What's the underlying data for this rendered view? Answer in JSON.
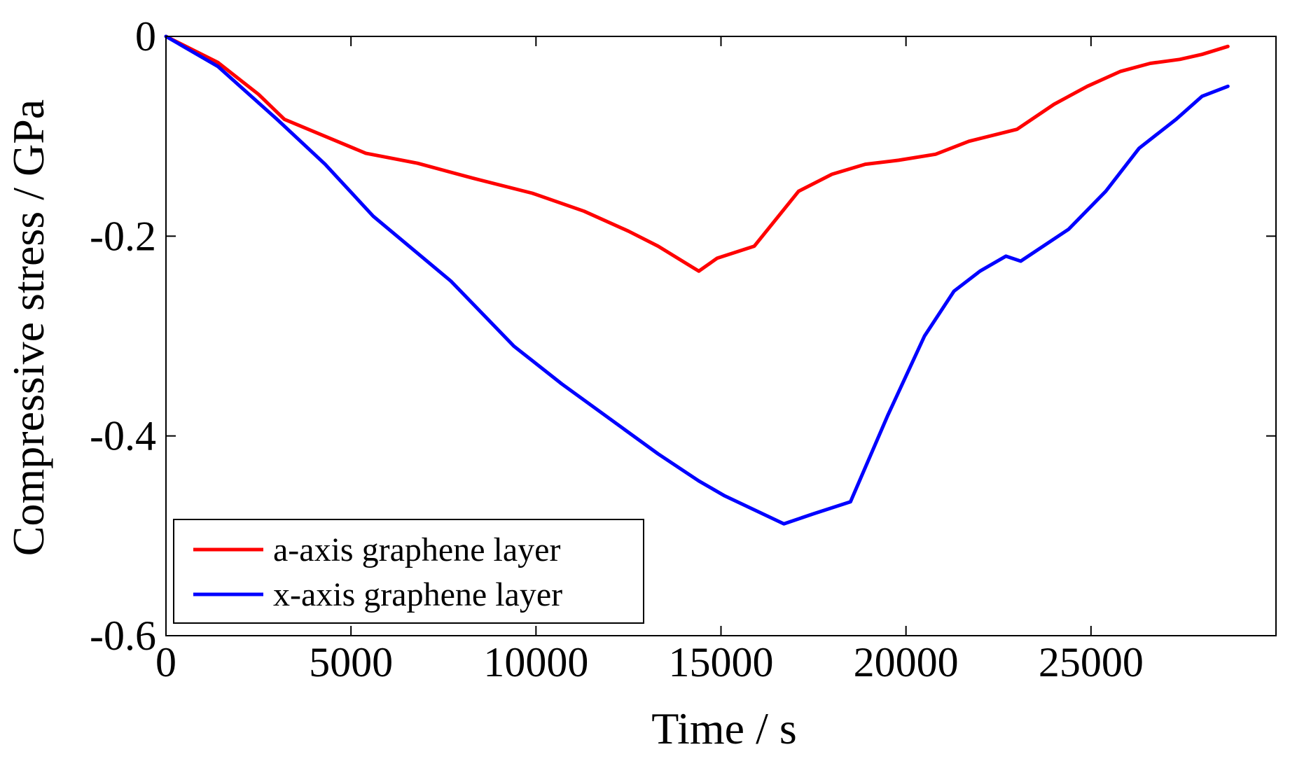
{
  "chart_data": {
    "type": "line",
    "title": "",
    "xlabel": "Time / s",
    "ylabel": "Compressive stress / GPa",
    "xlim": [
      0,
      30000
    ],
    "ylim": [
      -0.6,
      0
    ],
    "xticks": [
      0,
      5000,
      10000,
      15000,
      20000,
      25000
    ],
    "xtick_labels": [
      "0",
      "5000",
      "10000",
      "15000",
      "20000",
      "25000"
    ],
    "yticks": [
      0,
      -0.2,
      -0.4,
      -0.6
    ],
    "ytick_labels": [
      "0",
      "-0.2",
      "-0.4",
      "-0.6"
    ],
    "grid": false,
    "legend_position": "bottom-left",
    "series": [
      {
        "name": "a-axis graphene layer",
        "color": "#ff0000",
        "points": [
          [
            0,
            0
          ],
          [
            1400,
            -0.026
          ],
          [
            2500,
            -0.058
          ],
          [
            3200,
            -0.083
          ],
          [
            4300,
            -0.1
          ],
          [
            5400,
            -0.117
          ],
          [
            6800,
            -0.127
          ],
          [
            8300,
            -0.142
          ],
          [
            9900,
            -0.157
          ],
          [
            11300,
            -0.175
          ],
          [
            12500,
            -0.195
          ],
          [
            13300,
            -0.21
          ],
          [
            14400,
            -0.235
          ],
          [
            14900,
            -0.222
          ],
          [
            15900,
            -0.21
          ],
          [
            17100,
            -0.155
          ],
          [
            18000,
            -0.138
          ],
          [
            18900,
            -0.128
          ],
          [
            19800,
            -0.124
          ],
          [
            20800,
            -0.118
          ],
          [
            21700,
            -0.105
          ],
          [
            23000,
            -0.093
          ],
          [
            24000,
            -0.068
          ],
          [
            24900,
            -0.05
          ],
          [
            25800,
            -0.035
          ],
          [
            26600,
            -0.027
          ],
          [
            27400,
            -0.023
          ],
          [
            28000,
            -0.018
          ],
          [
            28700,
            -0.01
          ]
        ]
      },
      {
        "name": "x-axis graphene layer",
        "color": "#0000ff",
        "points": [
          [
            0,
            0
          ],
          [
            1400,
            -0.03
          ],
          [
            3000,
            -0.083
          ],
          [
            4300,
            -0.128
          ],
          [
            5600,
            -0.18
          ],
          [
            7700,
            -0.245
          ],
          [
            9400,
            -0.31
          ],
          [
            10700,
            -0.348
          ],
          [
            12000,
            -0.383
          ],
          [
            13300,
            -0.418
          ],
          [
            14400,
            -0.445
          ],
          [
            15100,
            -0.46
          ],
          [
            16700,
            -0.488
          ],
          [
            17500,
            -0.478
          ],
          [
            18500,
            -0.466
          ],
          [
            19500,
            -0.38
          ],
          [
            20500,
            -0.3
          ],
          [
            21300,
            -0.255
          ],
          [
            22000,
            -0.235
          ],
          [
            22700,
            -0.22
          ],
          [
            23100,
            -0.225
          ],
          [
            24400,
            -0.193
          ],
          [
            25400,
            -0.155
          ],
          [
            26300,
            -0.112
          ],
          [
            27300,
            -0.083
          ],
          [
            28000,
            -0.06
          ],
          [
            28700,
            -0.05
          ]
        ]
      }
    ]
  }
}
